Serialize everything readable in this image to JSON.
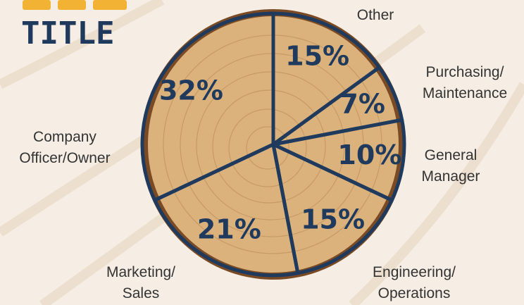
{
  "chart_data": {
    "type": "pie",
    "title": "TITLE",
    "categories": [
      "Other",
      "Purchasing/ Maintenance",
      "General Manager",
      "Engineering/ Operations",
      "Marketing/ Sales",
      "Company Officer/Owner"
    ],
    "values": [
      15,
      7,
      10,
      15,
      21,
      32
    ],
    "value_labels": [
      "15%",
      "7%",
      "10%",
      "15%",
      "21%",
      "32%"
    ],
    "color": "#1f3a5c"
  }
}
